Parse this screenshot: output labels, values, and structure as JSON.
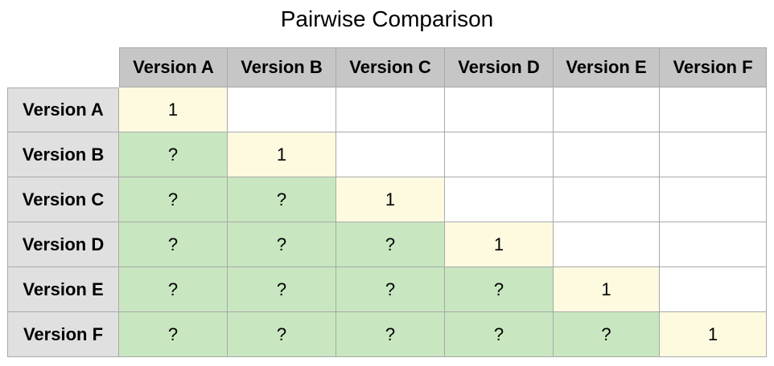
{
  "title": "Pairwise Comparison",
  "colors": {
    "header_bg": "#c6c6c6",
    "row_header_bg": "#e0e0e0",
    "diagonal_bg": "#fdfae0",
    "lower_bg": "#c8e6c0",
    "upper_bg": "#ffffff",
    "grid_line": "#a9a9a9"
  },
  "columns": [
    "Version A",
    "Version B",
    "Version C",
    "Version D",
    "Version E",
    "Version F"
  ],
  "rows": [
    {
      "label": "Version A",
      "cells": [
        "1",
        "",
        "",
        "",
        "",
        ""
      ]
    },
    {
      "label": "Version B",
      "cells": [
        "?",
        "1",
        "",
        "",
        "",
        ""
      ]
    },
    {
      "label": "Version C",
      "cells": [
        "?",
        "?",
        "1",
        "",
        "",
        ""
      ]
    },
    {
      "label": "Version D",
      "cells": [
        "?",
        "?",
        "?",
        "1",
        "",
        ""
      ]
    },
    {
      "label": "Version E",
      "cells": [
        "?",
        "?",
        "?",
        "?",
        "1",
        ""
      ]
    },
    {
      "label": "Version F",
      "cells": [
        "?",
        "?",
        "?",
        "?",
        "?",
        "1"
      ]
    }
  ]
}
